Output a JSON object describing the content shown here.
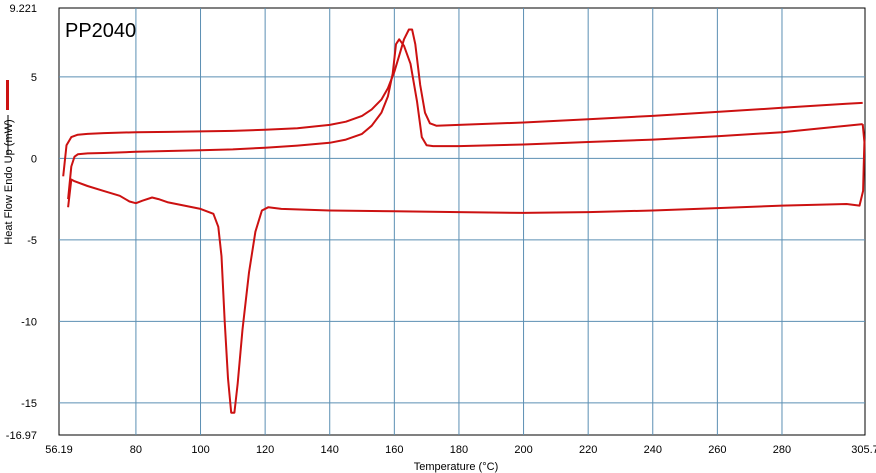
{
  "chart_data": {
    "type": "line",
    "title": "PP2040",
    "xlabel": "Temperature (°C)",
    "ylabel": "Heat Flow Endo Up (mW)",
    "xlim": [
      56.19,
      305.7
    ],
    "ylim": [
      -16.97,
      9.221
    ],
    "x_ticks": [
      56.19,
      80,
      100,
      120,
      140,
      160,
      180,
      200,
      220,
      240,
      260,
      280,
      305.7
    ],
    "x_tick_labels": [
      "56.19",
      "80",
      "100",
      "120",
      "140",
      "160",
      "180",
      "200",
      "220",
      "240",
      "260",
      "280",
      "305.7"
    ],
    "y_ticks": [
      9.221,
      5,
      0,
      -5,
      -10,
      -15,
      -16.97
    ],
    "y_tick_labels": [
      "9.221",
      "5",
      "0",
      "-5",
      "-10",
      "-15",
      "-16.97"
    ],
    "grid": true,
    "line_color": "#cc1111",
    "series": [
      {
        "values": [
          [
            57.5,
            -1.1
          ],
          [
            58.5,
            0.8
          ],
          [
            60,
            1.3
          ],
          [
            62,
            1.45
          ],
          [
            65,
            1.5
          ],
          [
            70,
            1.55
          ],
          [
            80,
            1.6
          ],
          [
            90,
            1.62
          ],
          [
            100,
            1.65
          ],
          [
            110,
            1.68
          ],
          [
            120,
            1.75
          ],
          [
            130,
            1.85
          ],
          [
            140,
            2.05
          ],
          [
            145,
            2.25
          ],
          [
            150,
            2.6
          ],
          [
            153,
            3.0
          ],
          [
            156,
            3.6
          ],
          [
            158,
            4.3
          ],
          [
            160,
            5.3
          ],
          [
            161.5,
            6.3
          ],
          [
            163,
            7.3
          ],
          [
            164.5,
            7.9
          ],
          [
            165.5,
            7.9
          ],
          [
            166.5,
            7.0
          ],
          [
            168,
            4.5
          ],
          [
            169.5,
            2.8
          ],
          [
            171,
            2.15
          ],
          [
            173,
            2.0
          ],
          [
            180,
            2.05
          ],
          [
            200,
            2.2
          ],
          [
            220,
            2.4
          ],
          [
            240,
            2.6
          ],
          [
            260,
            2.85
          ],
          [
            280,
            3.1
          ],
          [
            300,
            3.35
          ],
          [
            305,
            3.4
          ]
        ]
      },
      {
        "values": [
          [
            59,
            -2.5
          ],
          [
            60,
            -0.5
          ],
          [
            61,
            0.1
          ],
          [
            62,
            0.25
          ],
          [
            65,
            0.3
          ],
          [
            70,
            0.33
          ],
          [
            80,
            0.4
          ],
          [
            90,
            0.45
          ],
          [
            100,
            0.5
          ],
          [
            110,
            0.55
          ],
          [
            120,
            0.65
          ],
          [
            130,
            0.78
          ],
          [
            140,
            0.95
          ],
          [
            145,
            1.15
          ],
          [
            150,
            1.5
          ],
          [
            153,
            2.0
          ],
          [
            156,
            2.8
          ],
          [
            158,
            3.8
          ],
          [
            159.5,
            5.2
          ],
          [
            160.5,
            7.0
          ],
          [
            161.5,
            7.3
          ],
          [
            163,
            6.9
          ],
          [
            165,
            5.8
          ],
          [
            167,
            3.5
          ],
          [
            168.5,
            1.3
          ],
          [
            170,
            0.8
          ],
          [
            172,
            0.75
          ],
          [
            180,
            0.75
          ],
          [
            200,
            0.85
          ],
          [
            220,
            1.0
          ],
          [
            240,
            1.15
          ],
          [
            260,
            1.35
          ],
          [
            280,
            1.6
          ],
          [
            300,
            2.0
          ],
          [
            305,
            2.1
          ]
        ]
      },
      {
        "values": [
          [
            305,
            2.1
          ],
          [
            305.5,
            1.0
          ],
          [
            305.3,
            -0.5
          ],
          [
            305.1,
            -2.0
          ],
          [
            304,
            -2.9
          ],
          [
            300,
            -2.8
          ],
          [
            280,
            -2.9
          ],
          [
            260,
            -3.05
          ],
          [
            240,
            -3.2
          ],
          [
            220,
            -3.3
          ],
          [
            200,
            -3.35
          ],
          [
            180,
            -3.3
          ],
          [
            160,
            -3.25
          ],
          [
            140,
            -3.2
          ],
          [
            125,
            -3.1
          ],
          [
            121,
            -3.0
          ],
          [
            119,
            -3.2
          ],
          [
            117,
            -4.5
          ],
          [
            115,
            -7.0
          ],
          [
            113,
            -10.5
          ],
          [
            111.5,
            -13.8
          ],
          [
            110.5,
            -15.6
          ],
          [
            109.5,
            -15.6
          ],
          [
            108.5,
            -13.5
          ],
          [
            107.5,
            -10.0
          ],
          [
            106.5,
            -6.0
          ],
          [
            105.5,
            -4.2
          ],
          [
            104,
            -3.4
          ],
          [
            100,
            -3.1
          ],
          [
            95,
            -2.9
          ],
          [
            90,
            -2.7
          ],
          [
            87,
            -2.5
          ],
          [
            85,
            -2.4
          ],
          [
            82,
            -2.6
          ],
          [
            80,
            -2.75
          ],
          [
            78,
            -2.65
          ],
          [
            75,
            -2.3
          ],
          [
            70,
            -2.0
          ],
          [
            65,
            -1.7
          ],
          [
            61,
            -1.4
          ],
          [
            60,
            -1.3
          ],
          [
            59,
            -3.0
          ]
        ]
      }
    ]
  }
}
